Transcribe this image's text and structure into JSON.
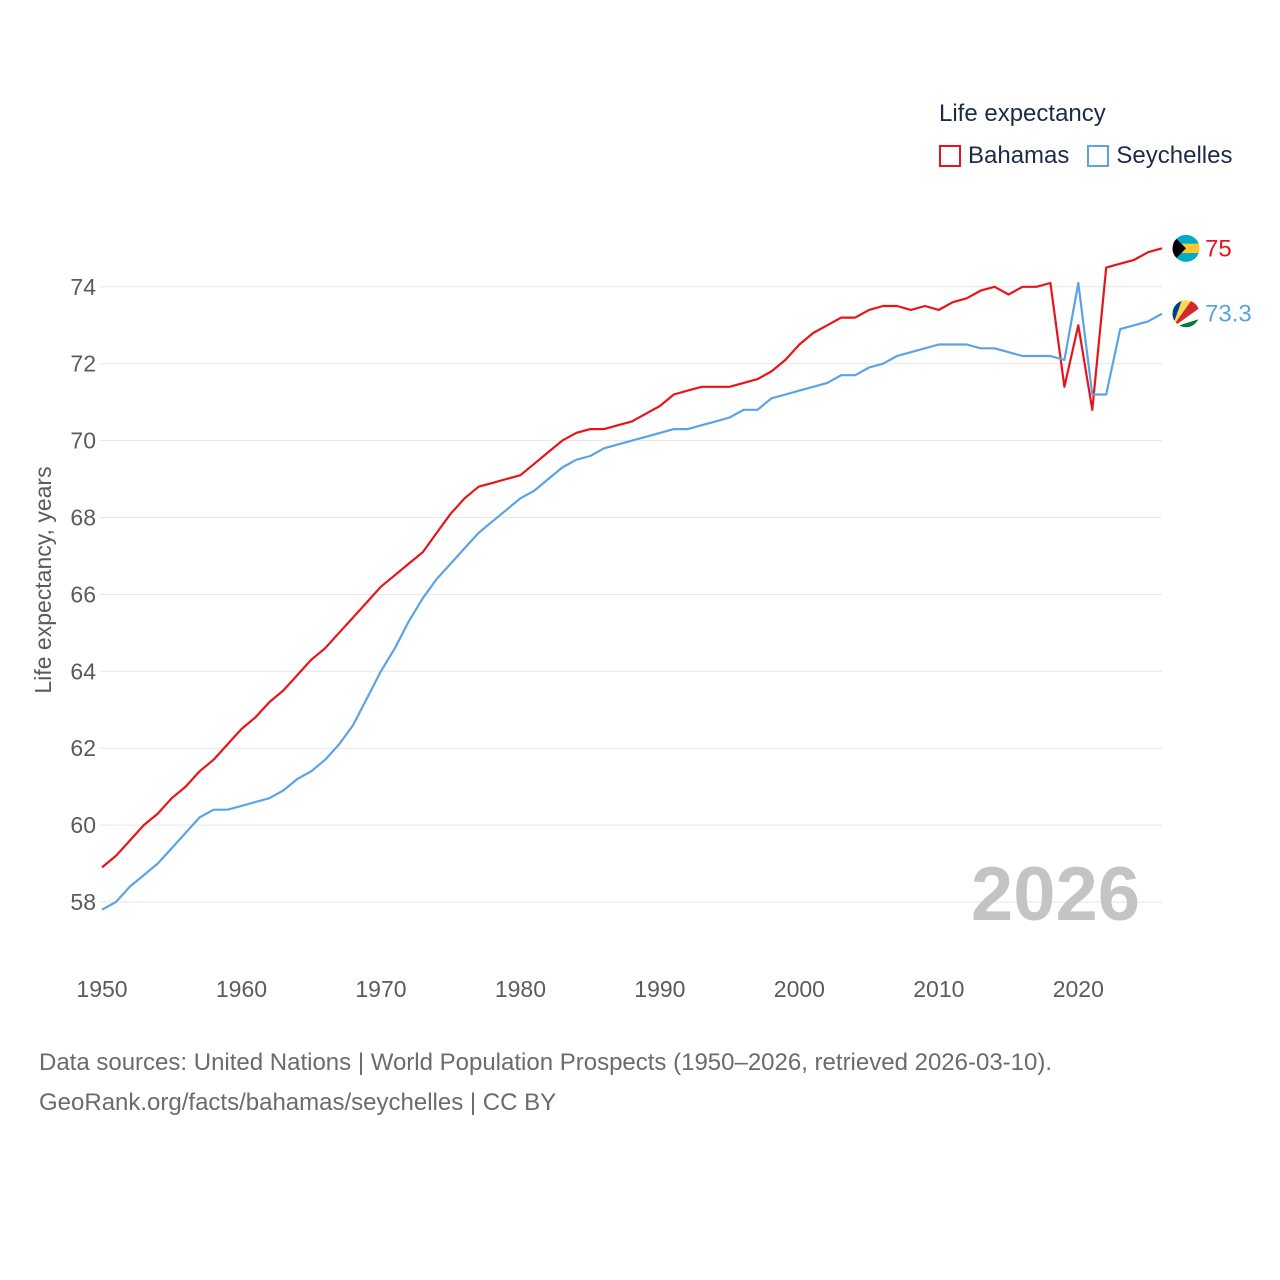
{
  "legend": {
    "title": "Life expectancy",
    "items": [
      {
        "label": "Bahamas",
        "color": "#e8141c"
      },
      {
        "label": "Seychelles",
        "color": "#5ba3e6"
      }
    ]
  },
  "source": {
    "line1": "Data sources: United Nations | World Population Prospects (1950–2026, retrieved 2026-03-10).",
    "line2": "GeoRank.org/facts/bahamas/seychelles | CC BY"
  },
  "chart_data": {
    "type": "line",
    "title": "Life expectancy",
    "ylabel": "Life expectancy, years",
    "xlabel": "",
    "xlim": [
      1950,
      2026
    ],
    "ylim": [
      57,
      75.5
    ],
    "year_label": "2026",
    "x_ticks": [
      1950,
      1960,
      1970,
      1980,
      1990,
      2000,
      2010,
      2020
    ],
    "y_ticks": [
      58,
      60,
      62,
      64,
      66,
      68,
      70,
      72,
      74
    ],
    "grid": true,
    "series": [
      {
        "name": "Bahamas",
        "color": "#e8141c",
        "end_label": "75",
        "flag": "bahamas",
        "x": [
          1950,
          1951,
          1952,
          1953,
          1954,
          1955,
          1956,
          1957,
          1958,
          1959,
          1960,
          1961,
          1962,
          1963,
          1964,
          1965,
          1966,
          1967,
          1968,
          1969,
          1970,
          1971,
          1972,
          1973,
          1974,
          1975,
          1976,
          1977,
          1978,
          1979,
          1980,
          1981,
          1982,
          1983,
          1984,
          1985,
          1986,
          1987,
          1988,
          1989,
          1990,
          1991,
          1992,
          1993,
          1994,
          1995,
          1996,
          1997,
          1998,
          1999,
          2000,
          2001,
          2002,
          2003,
          2004,
          2005,
          2006,
          2007,
          2008,
          2009,
          2010,
          2011,
          2012,
          2013,
          2014,
          2015,
          2016,
          2017,
          2018,
          2019,
          2020,
          2021,
          2022,
          2023,
          2024,
          2025,
          2026
        ],
        "values": [
          58.9,
          59.2,
          59.6,
          60.0,
          60.3,
          60.7,
          61.0,
          61.4,
          61.7,
          62.1,
          62.5,
          62.8,
          63.2,
          63.5,
          63.9,
          64.3,
          64.6,
          65.0,
          65.4,
          65.8,
          66.2,
          66.5,
          66.8,
          67.1,
          67.6,
          68.1,
          68.5,
          68.8,
          68.9,
          69.0,
          69.1,
          69.4,
          69.7,
          70.0,
          70.2,
          70.3,
          70.3,
          70.4,
          70.5,
          70.7,
          70.9,
          71.2,
          71.3,
          71.4,
          71.4,
          71.4,
          71.5,
          71.6,
          71.8,
          72.1,
          72.5,
          72.8,
          73.0,
          73.2,
          73.2,
          73.4,
          73.5,
          73.5,
          73.4,
          73.5,
          73.4,
          73.6,
          73.7,
          73.9,
          74.0,
          73.8,
          74.0,
          74.0,
          74.1,
          71.4,
          73.0,
          70.8,
          74.5,
          74.6,
          74.7,
          74.9,
          75.0
        ]
      },
      {
        "name": "Seychelles",
        "color": "#5ba3e6",
        "end_label": "73.3",
        "flag": "seychelles",
        "x": [
          1950,
          1951,
          1952,
          1953,
          1954,
          1955,
          1956,
          1957,
          1958,
          1959,
          1960,
          1961,
          1962,
          1963,
          1964,
          1965,
          1966,
          1967,
          1968,
          1969,
          1970,
          1971,
          1972,
          1973,
          1974,
          1975,
          1976,
          1977,
          1978,
          1979,
          1980,
          1981,
          1982,
          1983,
          1984,
          1985,
          1986,
          1987,
          1988,
          1989,
          1990,
          1991,
          1992,
          1993,
          1994,
          1995,
          1996,
          1997,
          1998,
          1999,
          2000,
          2001,
          2002,
          2003,
          2004,
          2005,
          2006,
          2007,
          2008,
          2009,
          2010,
          2011,
          2012,
          2013,
          2014,
          2015,
          2016,
          2017,
          2018,
          2019,
          2020,
          2021,
          2022,
          2023,
          2024,
          2025,
          2026
        ],
        "values": [
          57.8,
          58.0,
          58.4,
          58.7,
          59.0,
          59.4,
          59.8,
          60.2,
          60.4,
          60.4,
          60.5,
          60.6,
          60.7,
          60.9,
          61.2,
          61.4,
          61.7,
          62.1,
          62.6,
          63.3,
          64.0,
          64.6,
          65.3,
          65.9,
          66.4,
          66.8,
          67.2,
          67.6,
          67.9,
          68.2,
          68.5,
          68.7,
          69.0,
          69.3,
          69.5,
          69.6,
          69.8,
          69.9,
          70.0,
          70.1,
          70.2,
          70.3,
          70.3,
          70.4,
          70.5,
          70.6,
          70.8,
          70.8,
          71.1,
          71.2,
          71.3,
          71.4,
          71.5,
          71.7,
          71.7,
          71.9,
          72.0,
          72.2,
          72.3,
          72.4,
          72.5,
          72.5,
          72.5,
          72.4,
          72.4,
          72.3,
          72.2,
          72.2,
          72.2,
          72.1,
          74.1,
          71.2,
          71.2,
          72.9,
          73.0,
          73.1,
          73.3
        ]
      }
    ]
  }
}
